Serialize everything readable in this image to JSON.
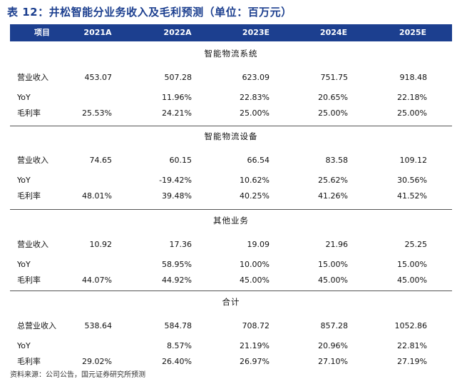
{
  "title": "表 12：井松智能分业务收入及毛利预测（单位：百万元）",
  "header": [
    "项目",
    "2021A",
    "2022A",
    "2023E",
    "2024E",
    "2025E"
  ],
  "sections": [
    {
      "name": "智能物流系统",
      "rows": [
        {
          "label": "营业收入",
          "values": [
            "453.07",
            "507.28",
            "623.09",
            "751.75",
            "918.48"
          ]
        },
        {
          "label": "YoY",
          "values": [
            "",
            "11.96%",
            "22.83%",
            "20.65%",
            "22.18%"
          ]
        },
        {
          "label": "毛利率",
          "values": [
            "25.53%",
            "24.21%",
            "25.00%",
            "25.00%",
            "25.00%"
          ]
        }
      ]
    },
    {
      "name": "智能物流设备",
      "rows": [
        {
          "label": "营业收入",
          "values": [
            "74.65",
            "60.15",
            "66.54",
            "83.58",
            "109.12"
          ]
        },
        {
          "label": "YoY",
          "values": [
            "",
            "-19.42%",
            "10.62%",
            "25.62%",
            "30.56%"
          ]
        },
        {
          "label": "毛利率",
          "values": [
            "48.01%",
            "39.48%",
            "40.25%",
            "41.26%",
            "41.52%"
          ]
        }
      ]
    },
    {
      "name": "其他业务",
      "rows": [
        {
          "label": "营业收入",
          "values": [
            "10.92",
            "17.36",
            "19.09",
            "21.96",
            "25.25"
          ]
        },
        {
          "label": "YoY",
          "values": [
            "",
            "58.95%",
            "10.00%",
            "15.00%",
            "15.00%"
          ]
        },
        {
          "label": "毛利率",
          "values": [
            "44.07%",
            "44.92%",
            "45.00%",
            "45.00%",
            "45.00%"
          ]
        }
      ]
    },
    {
      "name": "合计",
      "rows": [
        {
          "label": "总营业收入",
          "values": [
            "538.64",
            "584.78",
            "708.72",
            "857.28",
            "1052.86"
          ]
        },
        {
          "label": "YoY",
          "values": [
            "",
            "8.57%",
            "21.19%",
            "20.96%",
            "22.81%"
          ]
        },
        {
          "label": "毛利率",
          "values": [
            "29.02%",
            "26.40%",
            "26.97%",
            "27.10%",
            "27.19%"
          ]
        }
      ]
    }
  ],
  "source": "资料来源：公司公告，国元证券研究所预测"
}
